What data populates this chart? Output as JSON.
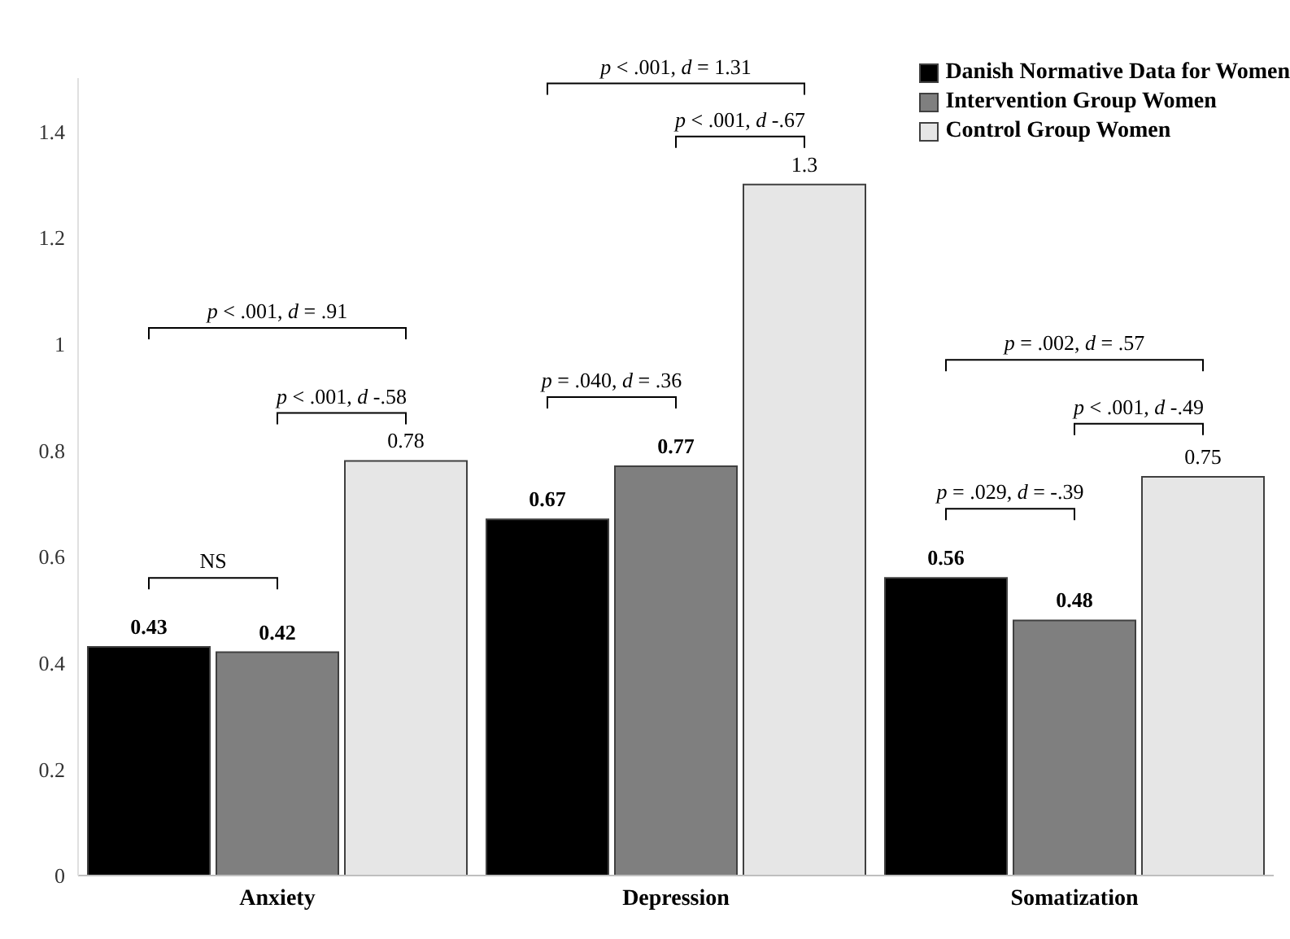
{
  "chart_data": {
    "type": "bar",
    "categories": [
      "Anxiety",
      "Depression",
      "Somatization"
    ],
    "series": [
      {
        "name": "Danish Normative Data for Women",
        "color": "#000000",
        "values": [
          0.43,
          0.67,
          0.56
        ]
      },
      {
        "name": "Intervention Group Women",
        "color": "#7f7f7f",
        "values": [
          0.42,
          0.77,
          0.48
        ]
      },
      {
        "name": "Control Group Women",
        "color": "#e6e6e6",
        "values": [
          0.78,
          1.3,
          0.75
        ]
      }
    ],
    "ylim": [
      0,
      1.5
    ],
    "yticks": [
      0,
      0.2,
      0.4,
      0.6,
      0.8,
      1,
      1.2,
      1.4
    ],
    "legend": "top right",
    "data_labels": true,
    "annotations": [
      "NS",
      "p < .001, d -.58",
      "p < .001, d = .91",
      "p = .040, d = .36",
      "p < .001, d -.67",
      "p < .001, d = 1.31",
      "p = .029, d = -.39",
      "p < .001, d -.49",
      "p = .002, d = .57"
    ]
  }
}
